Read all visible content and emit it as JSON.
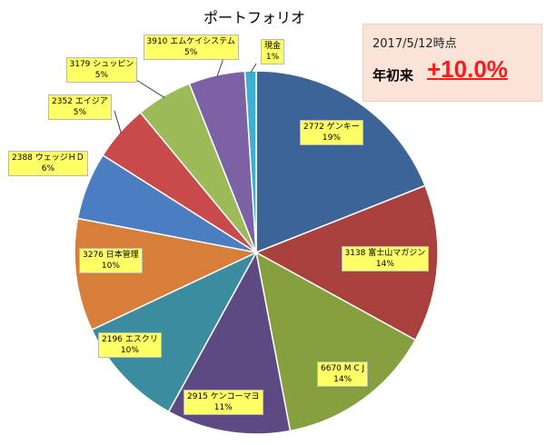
{
  "chart_data": {
    "type": "pie",
    "title": "ポートフォリオ",
    "categories": [
      "2772 ゲンキー",
      "3138 富士山マガジン",
      "6670 M C J",
      "2915 ケンコーマヨ",
      "2196 エスクリ",
      "3276 日本管理",
      "2388 ウェッジＨＤ",
      "2352 エイジア",
      "3179 シュッピン",
      "3910 エムケイシステム",
      "現金"
    ],
    "values": [
      19,
      14,
      14,
      11,
      10,
      10,
      6,
      5,
      5,
      5,
      1
    ],
    "value_labels": [
      "19%",
      "14%",
      "14%",
      "11%",
      "10%",
      "10%",
      "6%",
      "5%",
      "5%",
      "5%",
      "1%"
    ],
    "colors": [
      "#3c6496",
      "#a8403e",
      "#86a040",
      "#5e4a82",
      "#3a8c9e",
      "#d77f3a",
      "#4a7ec0",
      "#c84a4a",
      "#9cbb58",
      "#7b62a4",
      "#3eaed1"
    ],
    "start_angle_deg": 0,
    "direction": "clockwise"
  },
  "info_box": {
    "date": "2017/5/12時点",
    "ytd_label": "年初来",
    "ytd_value": "+10.0%"
  }
}
